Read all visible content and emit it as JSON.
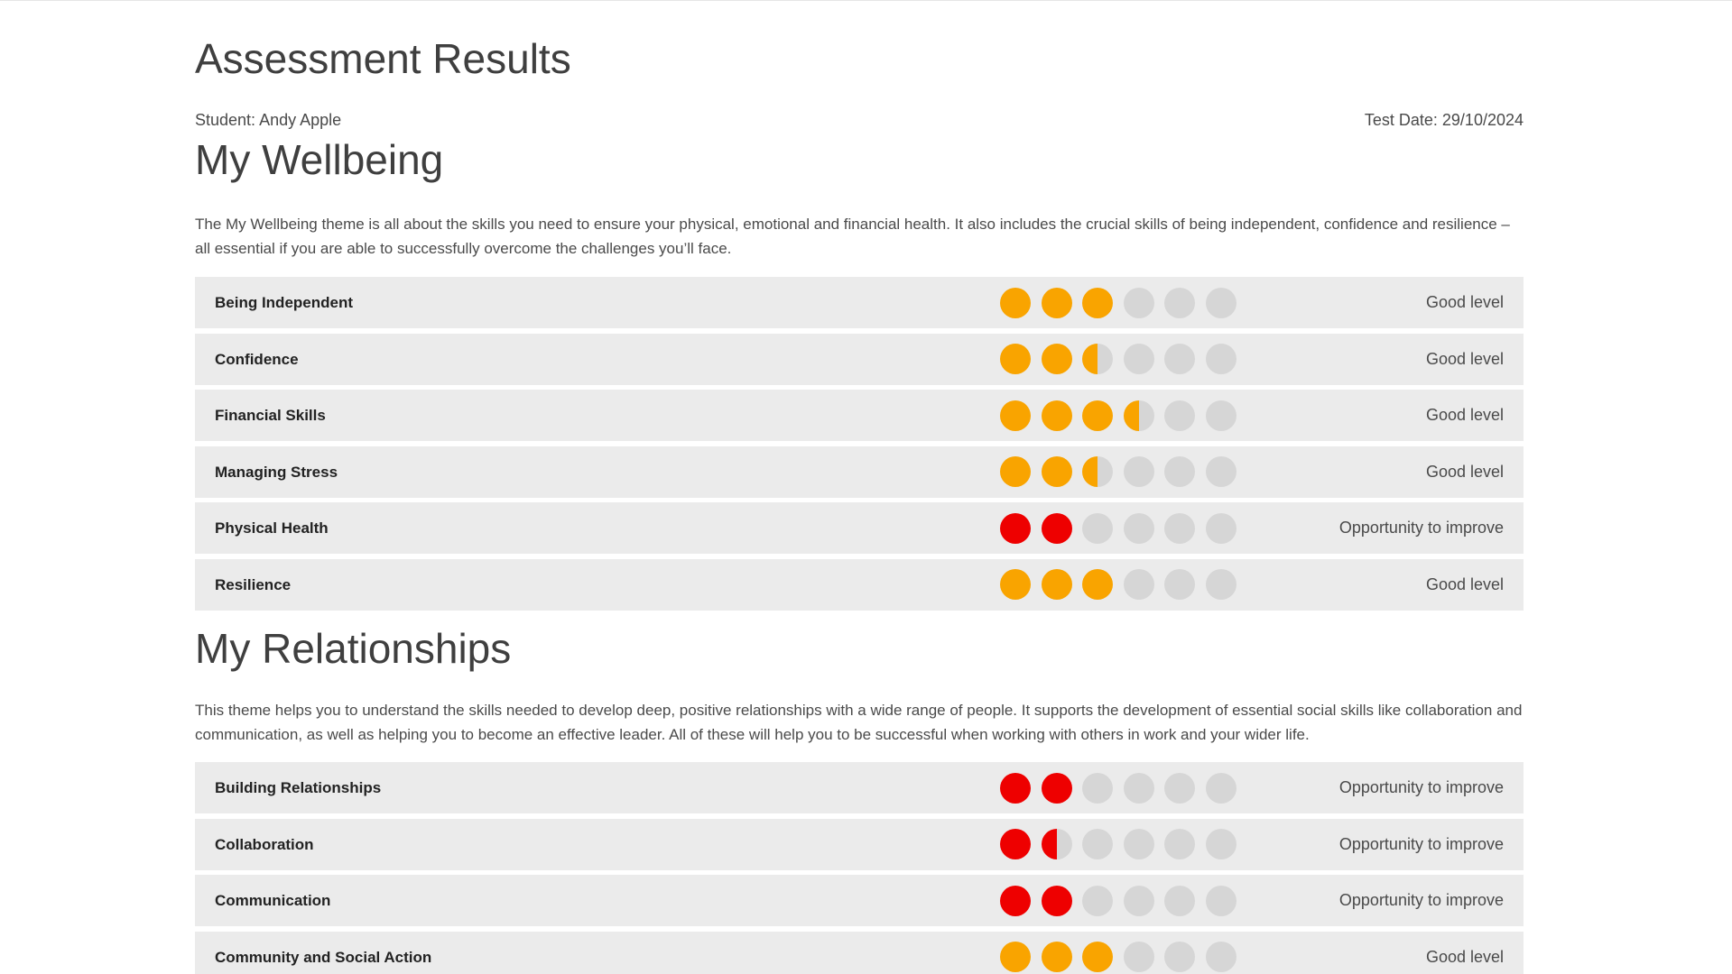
{
  "page": {
    "title": "Assessment Results",
    "student_label": "Student:",
    "student_name": "Andy Apple",
    "date_label": "Test Date:",
    "test_date": "29/10/2024"
  },
  "colors": {
    "good": "#f9a400",
    "improve": "#ee0000",
    "empty": "#d6d6d6",
    "row_background": "#ebebeb"
  },
  "score_max": 6,
  "sections": [
    {
      "title": "My Wellbeing",
      "description": "The My Wellbeing theme is all about the skills you need to ensure your physical, emotional and financial health. It also includes the crucial skills of being independent, confidence and resilience – all essential if you are able to successfully overcome the challenges you’ll face.",
      "skills": [
        {
          "name": "Being Independent",
          "score": 3,
          "level": "Good level",
          "color": "good"
        },
        {
          "name": "Confidence",
          "score": 2.5,
          "level": "Good level",
          "color": "good"
        },
        {
          "name": "Financial Skills",
          "score": 3.5,
          "level": "Good level",
          "color": "good"
        },
        {
          "name": "Managing Stress",
          "score": 2.5,
          "level": "Good level",
          "color": "good"
        },
        {
          "name": "Physical Health",
          "score": 2,
          "level": "Opportunity to improve",
          "color": "improve"
        },
        {
          "name": "Resilience",
          "score": 3,
          "level": "Good level",
          "color": "good"
        }
      ]
    },
    {
      "title": "My Relationships",
      "description": "This theme helps you to understand the skills needed to develop deep, positive relationships with a wide range of people. It supports the development of essential social skills like collaboration and communication, as well as helping you to become an effective leader. All of these will help you to be successful when working with others in work and your wider life.",
      "skills": [
        {
          "name": "Building Relationships",
          "score": 2,
          "level": "Opportunity to improve",
          "color": "improve"
        },
        {
          "name": "Collaboration",
          "score": 1.5,
          "level": "Opportunity to improve",
          "color": "improve"
        },
        {
          "name": "Communication",
          "score": 2,
          "level": "Opportunity to improve",
          "color": "improve"
        },
        {
          "name": "Community and Social Action",
          "score": 3,
          "level": "Good level",
          "color": "good"
        }
      ]
    }
  ]
}
